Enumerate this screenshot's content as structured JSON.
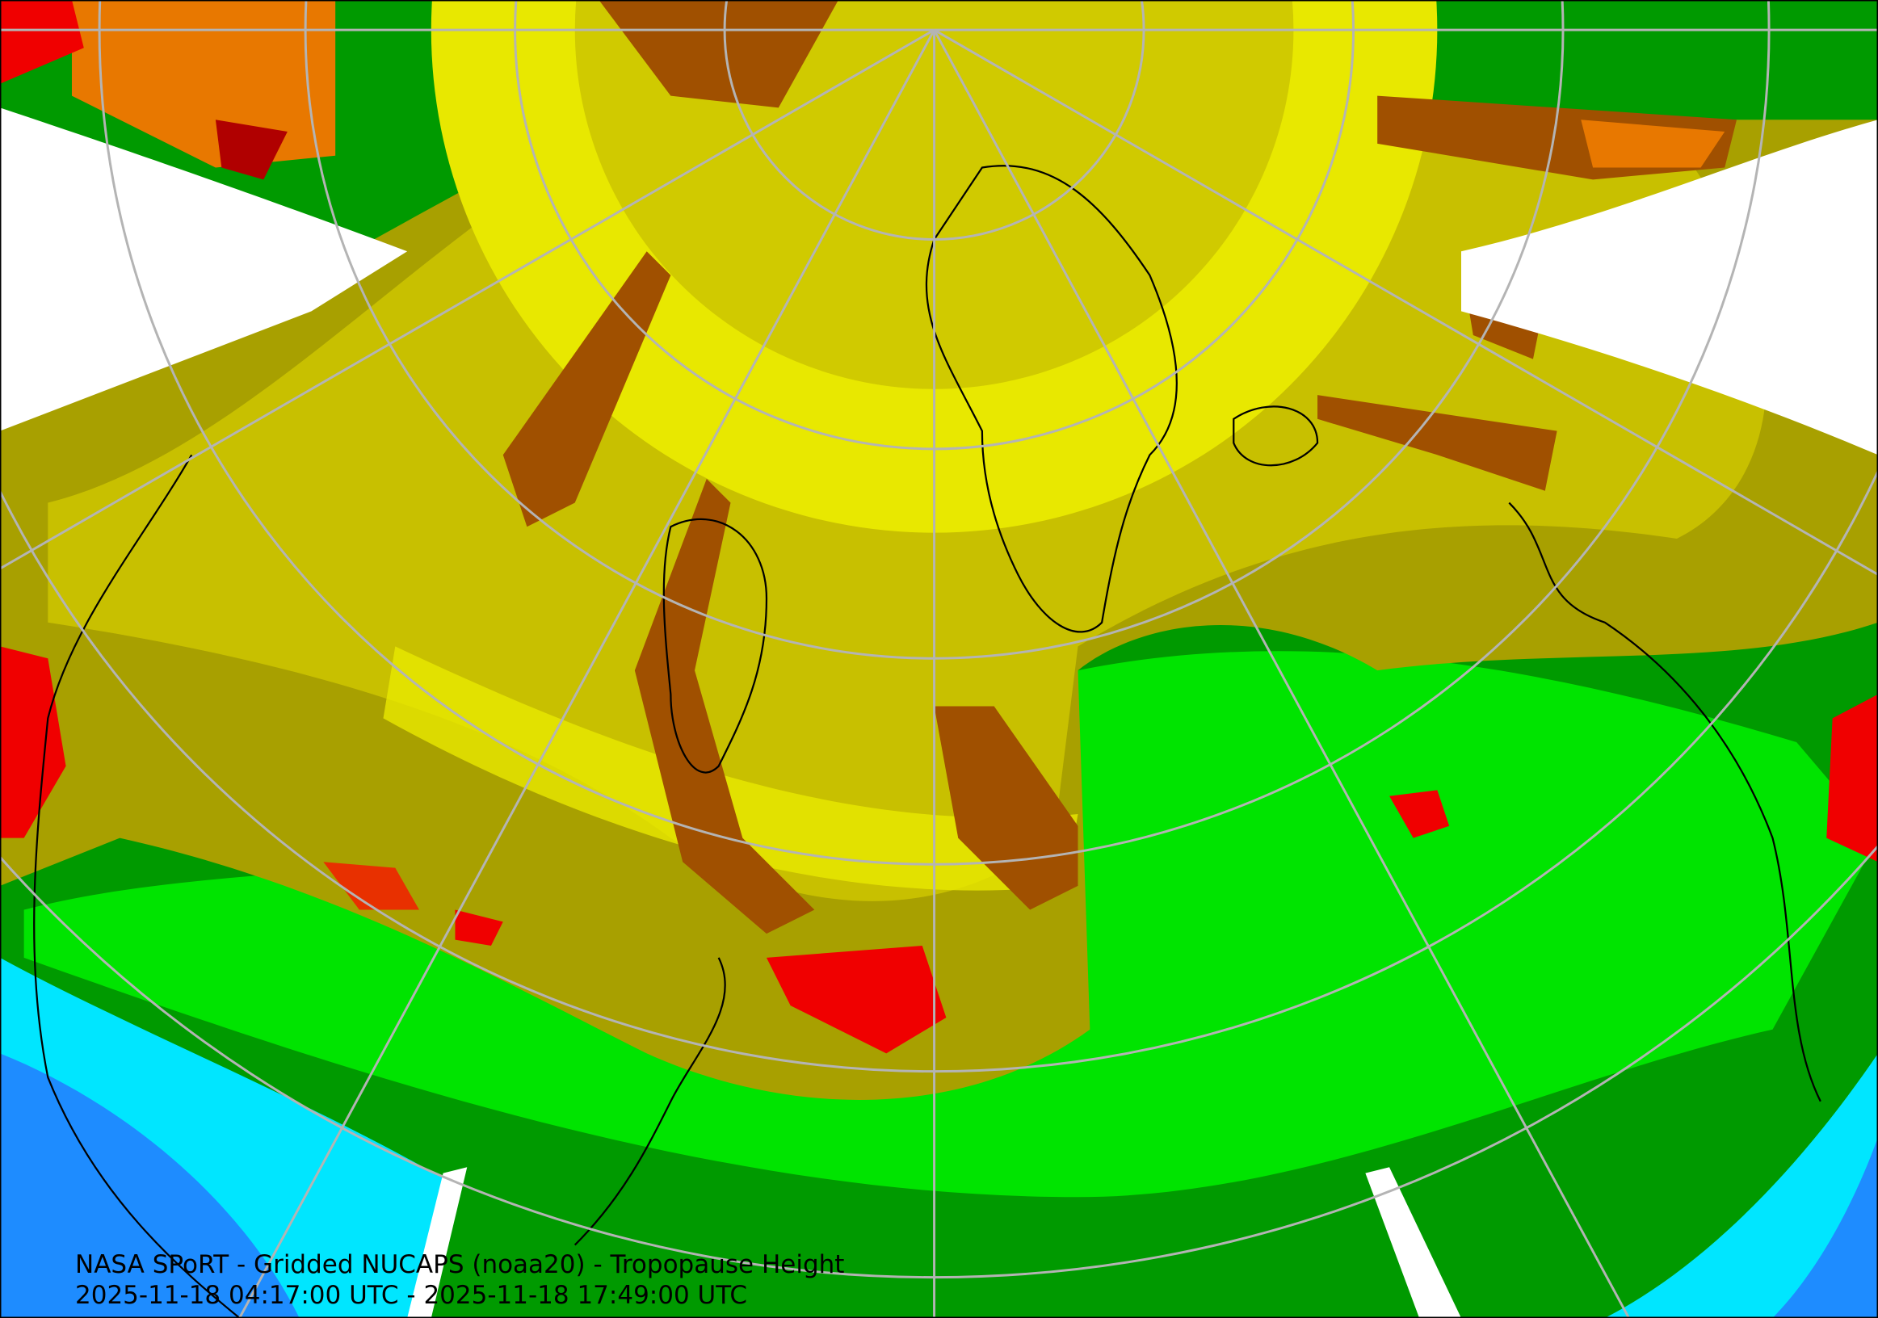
{
  "caption": {
    "title": "NASA SPoRT - Gridded NUCAPS (noaa20) - Tropopause Height",
    "time_range": "2025-11-18 04:17:00 UTC - 2025-11-18 17:49:00 UTC"
  },
  "map": {
    "projection": "north polar stereographic",
    "graticule": true,
    "coastlines": true,
    "political_boundaries": true,
    "colors": {
      "no_data": "#ffffff",
      "blue": "#1e8cff",
      "cyan": "#00e6ff",
      "dark_green": "#009a00",
      "green": "#00c800",
      "bright_green": "#00f000",
      "olive": "#a8a000",
      "khaki": "#c8c000",
      "yellow": "#e8e800",
      "brown": "#a05000",
      "orange": "#e87800",
      "red": "#f00000",
      "dark_red": "#b00000",
      "graticule": "#b4b4b4",
      "coastline": "#000000"
    }
  }
}
